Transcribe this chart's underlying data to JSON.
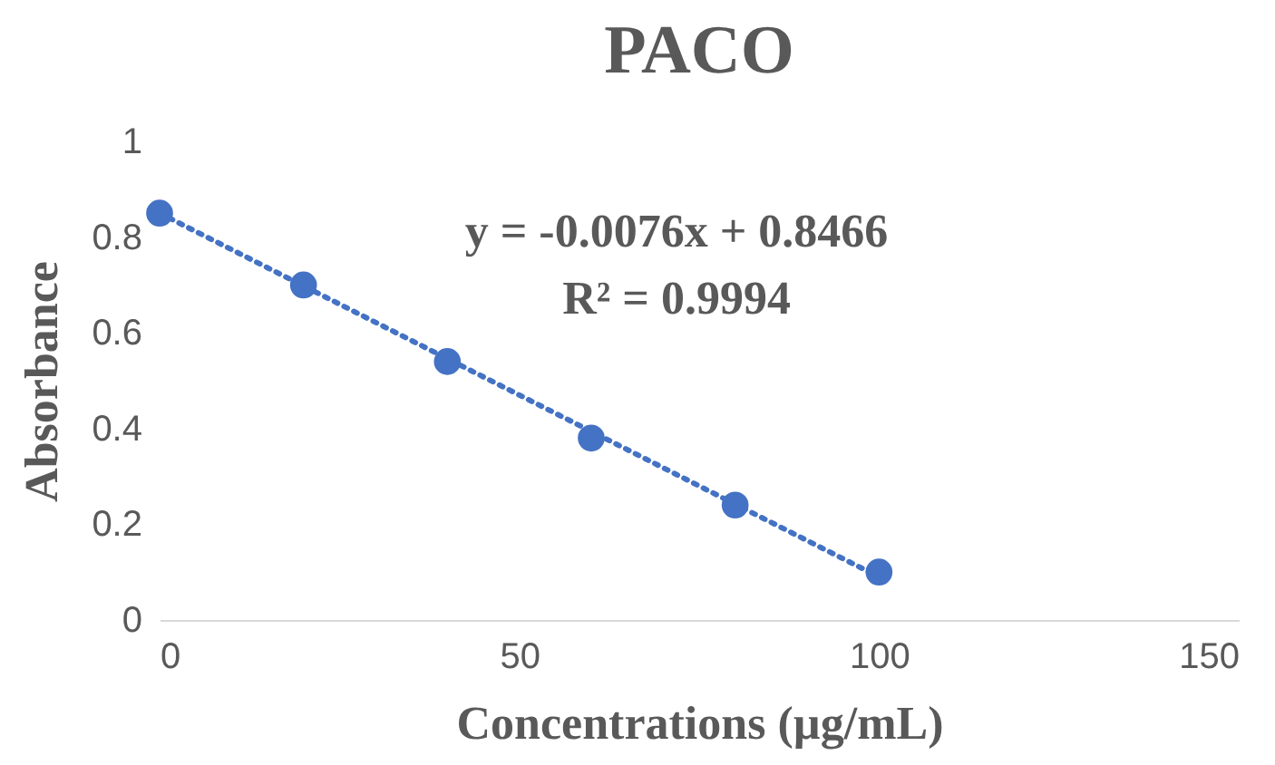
{
  "chart_data": {
    "type": "scatter",
    "title": "PACO",
    "xlabel": "Concentrations (µg/mL)",
    "ylabel": "Absorbance",
    "x": [
      0,
      20,
      40,
      60,
      80,
      100
    ],
    "series": [
      {
        "color": "#4472c4",
        "values": [
          0.85,
          0.7,
          0.54,
          0.38,
          0.24,
          0.1
        ],
        "marker": "circle"
      },
      {
        "type": "line",
        "color": "#4472c4",
        "x": [
          0,
          100
        ],
        "values": [
          0.85,
          0.09
        ],
        "line_style": "dotted"
      }
    ],
    "annotations": [
      "y = -0.0076x + 0.8466",
      "R² = 0.9994"
    ],
    "xlim": [
      0,
      150
    ],
    "xticks": [
      0,
      50,
      100,
      150
    ],
    "ylim": [
      0,
      1
    ],
    "yticks": [
      0,
      0.2,
      0.4,
      0.6,
      0.8,
      1
    ],
    "grid": false
  }
}
